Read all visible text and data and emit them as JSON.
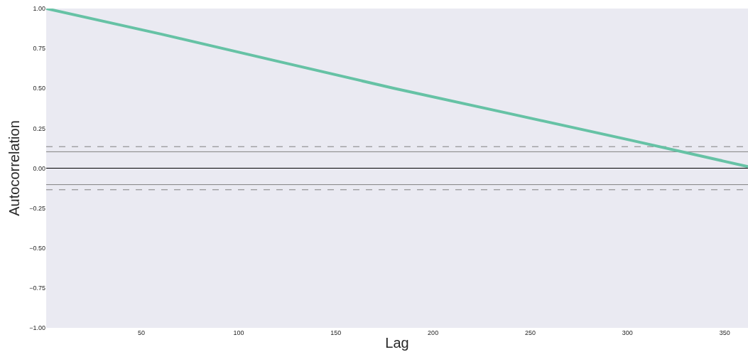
{
  "chart_data": {
    "type": "line",
    "xlabel": "Lag",
    "ylabel": "Autocorrelation",
    "x": [
      1,
      60,
      120,
      180,
      240,
      300,
      362
    ],
    "series": [
      {
        "color": "#66c2a5",
        "values": [
          1.0,
          0.84,
          0.67,
          0.5,
          0.34,
          0.18,
          0.01
        ]
      }
    ],
    "xlim": [
      1,
      362
    ],
    "xticks": [
      50,
      100,
      150,
      200,
      250,
      300,
      350
    ],
    "ylim": [
      -1,
      1
    ],
    "yticks": [
      {
        "value": -1,
        "label": "−1.00"
      },
      {
        "value": -0.75,
        "label": "−0.75"
      },
      {
        "value": -0.5,
        "label": "−0.50"
      },
      {
        "value": -0.25,
        "label": "−0.25"
      },
      {
        "value": 0,
        "label": "0.00"
      },
      {
        "value": 0.25,
        "label": "0.25"
      },
      {
        "value": 0.5,
        "label": "0.50"
      },
      {
        "value": 0.75,
        "label": "0.75"
      },
      {
        "value": 1,
        "label": "1.00"
      }
    ],
    "ref_lines": [
      {
        "axis": "y",
        "value": 0.135,
        "color": "#808080",
        "line_style": "dashed"
      },
      {
        "axis": "y",
        "value": 0.103,
        "color": "#808080",
        "line_style": "solid"
      },
      {
        "axis": "y",
        "value": 0,
        "color": "#000000",
        "line_style": "solid"
      },
      {
        "axis": "y",
        "value": -0.103,
        "color": "#808080",
        "line_style": "solid"
      },
      {
        "axis": "y",
        "value": -0.135,
        "color": "#808080",
        "line_style": "dashed"
      }
    ],
    "grid": false,
    "marker": "none",
    "line_style": "solid"
  }
}
